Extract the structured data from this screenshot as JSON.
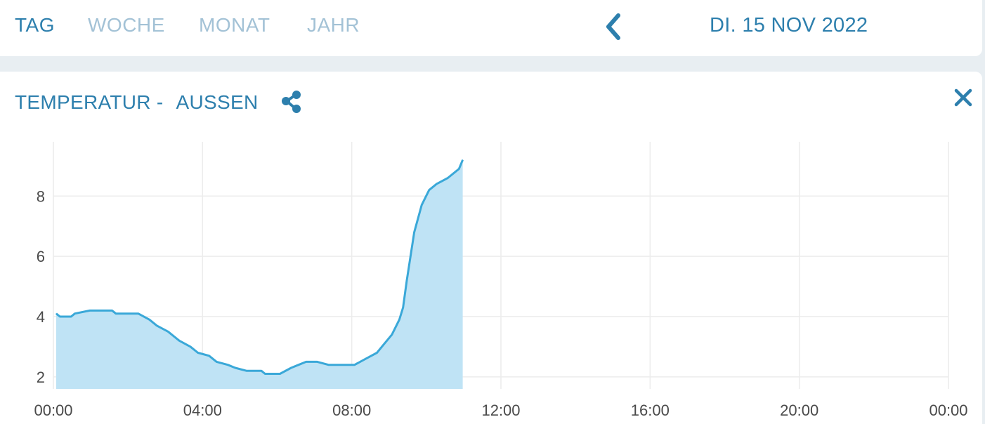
{
  "tabs": [
    {
      "label": "TAG",
      "active": true
    },
    {
      "label": "WOCHE",
      "active": false
    },
    {
      "label": "MONAT",
      "active": false
    },
    {
      "label": "JAHR",
      "active": false
    }
  ],
  "date_nav": {
    "prev_icon": "chevron-left-icon",
    "date": "DI. 15 NOV 2022"
  },
  "panel": {
    "title": "TEMPERATUR -",
    "sensor": "AUSSEN",
    "share_icon": "share-icon",
    "close_icon": "close-icon"
  },
  "colors": {
    "accent": "#2d7fad",
    "inactive": "#a3c2d6",
    "line": "#3aa8d8",
    "fill": "#bfe3f5",
    "grid": "#ececec"
  },
  "chart_data": {
    "type": "area",
    "x_ticks": [
      "00:00",
      "04:00",
      "08:00",
      "12:00",
      "16:00",
      "20:00",
      "00:00"
    ],
    "y_ticks": [
      "2",
      "4",
      "6",
      "8"
    ],
    "xlim_hours": [
      0,
      24
    ],
    "ylim": [
      1.6,
      9.8
    ],
    "grid": true,
    "series": [
      {
        "x_hours": [
          0.0,
          0.1,
          0.4,
          0.5,
          0.9,
          1.5,
          1.6,
          2.2,
          2.5,
          2.7,
          3.0,
          3.3,
          3.6,
          3.8,
          4.1,
          4.3,
          4.6,
          4.8,
          5.1,
          5.5,
          5.6,
          6.0,
          6.3,
          6.5,
          6.7,
          7.0,
          7.3,
          7.6,
          8.0,
          8.3,
          8.6,
          8.8,
          9.0,
          9.2,
          9.3,
          9.4,
          9.5,
          9.6,
          9.8,
          10.0,
          10.2,
          10.5,
          10.8,
          10.9
        ],
        "values": [
          4.1,
          4.0,
          4.0,
          4.1,
          4.2,
          4.2,
          4.1,
          4.1,
          3.9,
          3.7,
          3.5,
          3.2,
          3.0,
          2.8,
          2.7,
          2.5,
          2.4,
          2.3,
          2.2,
          2.2,
          2.1,
          2.1,
          2.3,
          2.4,
          2.5,
          2.5,
          2.4,
          2.4,
          2.4,
          2.6,
          2.8,
          3.1,
          3.4,
          3.9,
          4.3,
          5.2,
          6.0,
          6.8,
          7.7,
          8.2,
          8.4,
          8.6,
          8.9,
          9.2
        ]
      }
    ]
  }
}
